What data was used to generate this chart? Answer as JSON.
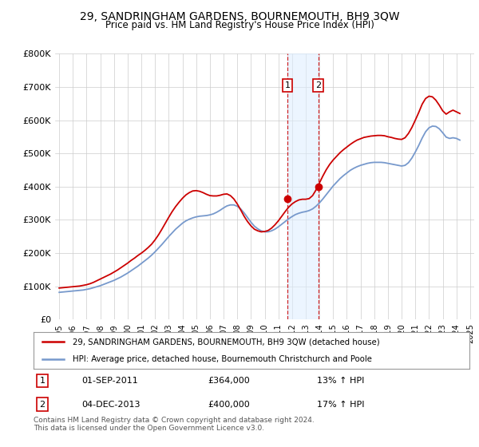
{
  "title": "29, SANDRINGHAM GARDENS, BOURNEMOUTH, BH9 3QW",
  "subtitle": "Price paid vs. HM Land Registry's House Price Index (HPI)",
  "legend_line1": "29, SANDRINGHAM GARDENS, BOURNEMOUTH, BH9 3QW (detached house)",
  "legend_line2": "HPI: Average price, detached house, Bournemouth Christchurch and Poole",
  "annotation1_date": "01-SEP-2011",
  "annotation1_price": "£364,000",
  "annotation1_hpi": "13% ↑ HPI",
  "annotation2_date": "04-DEC-2013",
  "annotation2_price": "£400,000",
  "annotation2_hpi": "17% ↑ HPI",
  "footer": "Contains HM Land Registry data © Crown copyright and database right 2024.\nThis data is licensed under the Open Government Licence v3.0.",
  "red_line_color": "#cc0000",
  "blue_line_color": "#7799cc",
  "background_color": "#ffffff",
  "plot_bg_color": "#ffffff",
  "grid_color": "#cccccc",
  "shade_color": "#ddeeff",
  "ylim": [
    0,
    800000
  ],
  "yticks": [
    0,
    100000,
    200000,
    300000,
    400000,
    500000,
    600000,
    700000,
    800000
  ],
  "ytick_labels": [
    "£0",
    "£100K",
    "£200K",
    "£300K",
    "£400K",
    "£500K",
    "£600K",
    "£700K",
    "£800K"
  ],
  "red_x": [
    1995.0,
    1995.25,
    1995.5,
    1995.75,
    1996.0,
    1996.25,
    1996.5,
    1996.75,
    1997.0,
    1997.25,
    1997.5,
    1997.75,
    1998.0,
    1998.25,
    1998.5,
    1998.75,
    1999.0,
    1999.25,
    1999.5,
    1999.75,
    2000.0,
    2000.25,
    2000.5,
    2000.75,
    2001.0,
    2001.25,
    2001.5,
    2001.75,
    2002.0,
    2002.25,
    2002.5,
    2002.75,
    2003.0,
    2003.25,
    2003.5,
    2003.75,
    2004.0,
    2004.25,
    2004.5,
    2004.75,
    2005.0,
    2005.25,
    2005.5,
    2005.75,
    2006.0,
    2006.25,
    2006.5,
    2006.75,
    2007.0,
    2007.25,
    2007.5,
    2007.75,
    2008.0,
    2008.25,
    2008.5,
    2008.75,
    2009.0,
    2009.25,
    2009.5,
    2009.75,
    2010.0,
    2010.25,
    2010.5,
    2010.75,
    2011.0,
    2011.25,
    2011.5,
    2011.75,
    2012.0,
    2012.25,
    2012.5,
    2012.75,
    2013.0,
    2013.25,
    2013.5,
    2013.75,
    2014.0,
    2014.25,
    2014.5,
    2014.75,
    2015.0,
    2015.25,
    2015.5,
    2015.75,
    2016.0,
    2016.25,
    2016.5,
    2016.75,
    2017.0,
    2017.25,
    2017.5,
    2017.75,
    2018.0,
    2018.25,
    2018.5,
    2018.75,
    2019.0,
    2019.25,
    2019.5,
    2019.75,
    2020.0,
    2020.25,
    2020.5,
    2020.75,
    2021.0,
    2021.25,
    2021.5,
    2021.75,
    2022.0,
    2022.25,
    2022.5,
    2022.75,
    2023.0,
    2023.25,
    2023.5,
    2023.75,
    2024.0,
    2024.25
  ],
  "red_y": [
    95000,
    96000,
    97000,
    98000,
    99000,
    100000,
    101000,
    103000,
    105000,
    108000,
    112000,
    117000,
    122000,
    127000,
    132000,
    137000,
    143000,
    149000,
    156000,
    163000,
    170000,
    178000,
    185000,
    193000,
    200000,
    208000,
    217000,
    227000,
    240000,
    255000,
    272000,
    290000,
    308000,
    325000,
    340000,
    353000,
    365000,
    375000,
    382000,
    387000,
    388000,
    386000,
    382000,
    377000,
    373000,
    372000,
    372000,
    374000,
    377000,
    378000,
    373000,
    363000,
    348000,
    330000,
    311000,
    295000,
    282000,
    272000,
    267000,
    264000,
    265000,
    268000,
    275000,
    285000,
    297000,
    311000,
    325000,
    338000,
    348000,
    355000,
    360000,
    362000,
    362000,
    364000,
    373000,
    390000,
    411000,
    432000,
    451000,
    467000,
    480000,
    491000,
    502000,
    511000,
    519000,
    527000,
    534000,
    540000,
    544000,
    548000,
    550000,
    552000,
    553000,
    554000,
    554000,
    553000,
    550000,
    548000,
    545000,
    543000,
    542000,
    547000,
    560000,
    578000,
    600000,
    623000,
    648000,
    665000,
    672000,
    670000,
    660000,
    645000,
    628000,
    618000,
    625000,
    630000,
    625000,
    620000
  ],
  "blue_x": [
    1995.0,
    1995.25,
    1995.5,
    1995.75,
    1996.0,
    1996.25,
    1996.5,
    1996.75,
    1997.0,
    1997.25,
    1997.5,
    1997.75,
    1998.0,
    1998.25,
    1998.5,
    1998.75,
    1999.0,
    1999.25,
    1999.5,
    1999.75,
    2000.0,
    2000.25,
    2000.5,
    2000.75,
    2001.0,
    2001.25,
    2001.5,
    2001.75,
    2002.0,
    2002.25,
    2002.5,
    2002.75,
    2003.0,
    2003.25,
    2003.5,
    2003.75,
    2004.0,
    2004.25,
    2004.5,
    2004.75,
    2005.0,
    2005.25,
    2005.5,
    2005.75,
    2006.0,
    2006.25,
    2006.5,
    2006.75,
    2007.0,
    2007.25,
    2007.5,
    2007.75,
    2008.0,
    2008.25,
    2008.5,
    2008.75,
    2009.0,
    2009.25,
    2009.5,
    2009.75,
    2010.0,
    2010.25,
    2010.5,
    2010.75,
    2011.0,
    2011.25,
    2011.5,
    2011.75,
    2012.0,
    2012.25,
    2012.5,
    2012.75,
    2013.0,
    2013.25,
    2013.5,
    2013.75,
    2014.0,
    2014.25,
    2014.5,
    2014.75,
    2015.0,
    2015.25,
    2015.5,
    2015.75,
    2016.0,
    2016.25,
    2016.5,
    2016.75,
    2017.0,
    2017.25,
    2017.5,
    2017.75,
    2018.0,
    2018.25,
    2018.5,
    2018.75,
    2019.0,
    2019.25,
    2019.5,
    2019.75,
    2020.0,
    2020.25,
    2020.5,
    2020.75,
    2021.0,
    2021.25,
    2021.5,
    2021.75,
    2022.0,
    2022.25,
    2022.5,
    2022.75,
    2023.0,
    2023.25,
    2023.5,
    2023.75,
    2024.0,
    2024.25
  ],
  "blue_y": [
    82000,
    83000,
    84000,
    85000,
    86000,
    87000,
    88000,
    89000,
    91000,
    93000,
    96000,
    99000,
    102000,
    106000,
    110000,
    114000,
    118000,
    123000,
    128000,
    134000,
    140000,
    147000,
    154000,
    161000,
    169000,
    177000,
    185000,
    194000,
    204000,
    215000,
    226000,
    238000,
    250000,
    261000,
    272000,
    281000,
    290000,
    297000,
    302000,
    306000,
    309000,
    311000,
    312000,
    313000,
    315000,
    318000,
    323000,
    329000,
    336000,
    342000,
    345000,
    345000,
    341000,
    333000,
    321000,
    307000,
    293000,
    281000,
    273000,
    267000,
    264000,
    264000,
    267000,
    272000,
    279000,
    287000,
    295000,
    303000,
    310000,
    316000,
    320000,
    323000,
    325000,
    328000,
    333000,
    341000,
    351000,
    363000,
    376000,
    389000,
    402000,
    413000,
    424000,
    433000,
    441000,
    449000,
    455000,
    460000,
    464000,
    467000,
    470000,
    472000,
    473000,
    473000,
    473000,
    472000,
    470000,
    468000,
    466000,
    464000,
    462000,
    464000,
    472000,
    486000,
    504000,
    524000,
    546000,
    565000,
    577000,
    582000,
    581000,
    574000,
    562000,
    549000,
    545000,
    547000,
    545000,
    540000
  ],
  "sale1_x": 2011.667,
  "sale1_y": 364000,
  "sale2_x": 2013.917,
  "sale2_y": 400000,
  "shade_x1": 2011.667,
  "shade_x2": 2013.917,
  "xtick_years": [
    1995,
    1996,
    1997,
    1998,
    1999,
    2000,
    2001,
    2002,
    2003,
    2004,
    2005,
    2006,
    2007,
    2008,
    2009,
    2010,
    2011,
    2012,
    2013,
    2014,
    2015,
    2016,
    2017,
    2018,
    2019,
    2020,
    2021,
    2022,
    2023,
    2024,
    2025
  ]
}
